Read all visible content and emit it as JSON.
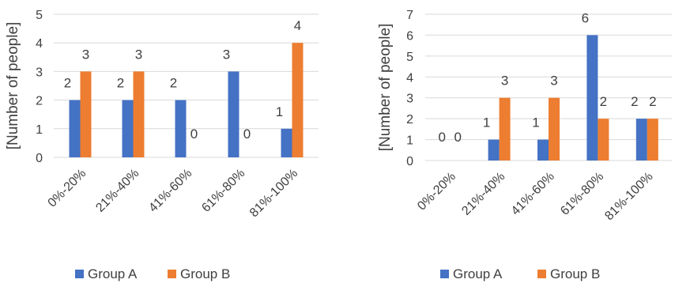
{
  "chart_data": [
    {
      "type": "bar",
      "title": "",
      "xlabel": "",
      "ylabel": "[Number of people]",
      "ylim": [
        0,
        5
      ],
      "yticks": [
        0,
        1,
        2,
        3,
        4,
        5
      ],
      "categories": [
        "0%-20%",
        "21%-40%",
        "41%-60%",
        "61%-80%",
        "81%-100%"
      ],
      "series": [
        {
          "name": "Group A",
          "color": "#4472C4",
          "values": [
            2,
            2,
            2,
            3,
            1
          ]
        },
        {
          "name": "Group B",
          "color": "#ED7D31",
          "values": [
            3,
            3,
            0,
            0,
            4
          ]
        }
      ],
      "data_labels": true,
      "grid": true,
      "legend": "bottom"
    },
    {
      "type": "bar",
      "title": "",
      "xlabel": "",
      "ylabel": "[Number of people]",
      "ylim": [
        0,
        7
      ],
      "yticks": [
        0,
        1,
        2,
        3,
        4,
        5,
        6,
        7
      ],
      "categories": [
        "0%-20%",
        "21%-40%",
        "41%-60%",
        "61%-80%",
        "81%-100%"
      ],
      "series": [
        {
          "name": "Group A",
          "color": "#4472C4",
          "values": [
            0,
            1,
            1,
            6,
            2
          ]
        },
        {
          "name": "Group B",
          "color": "#ED7D31",
          "values": [
            0,
            3,
            3,
            2,
            2
          ]
        }
      ],
      "data_labels": true,
      "grid": true,
      "legend": "bottom"
    }
  ]
}
